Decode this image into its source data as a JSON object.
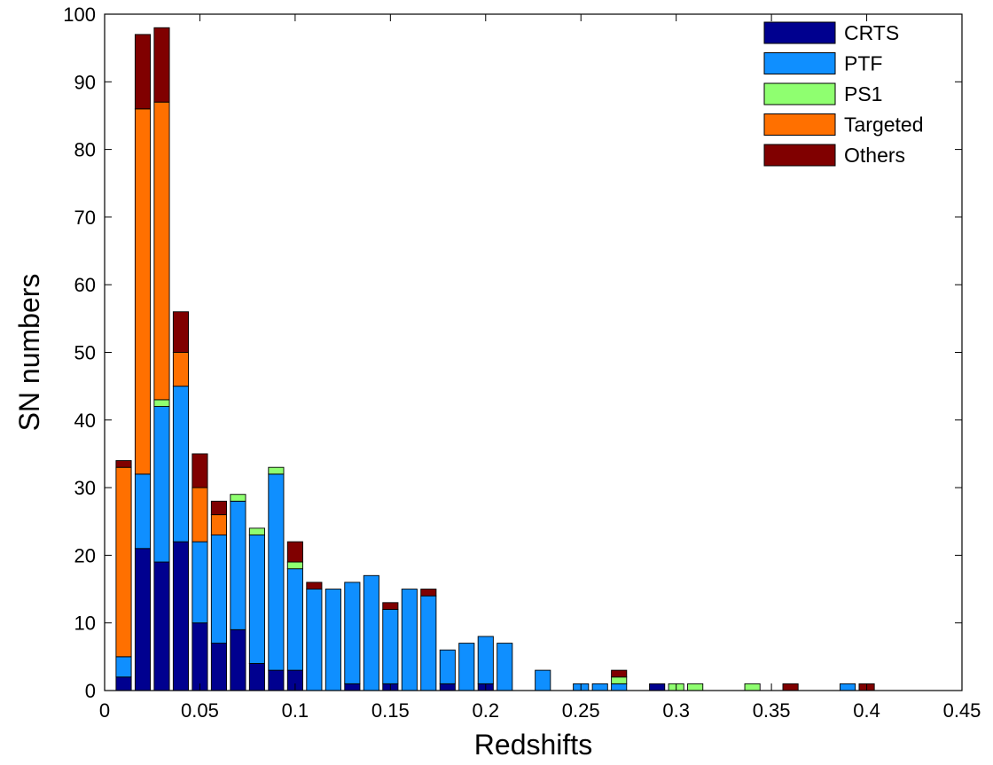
{
  "chart_data": {
    "type": "bar",
    "stacked": true,
    "xlabel": "Redshifts",
    "ylabel": "SN numbers",
    "xlim": [
      0,
      0.45
    ],
    "ylim": [
      0,
      100
    ],
    "xticks": [
      "0",
      "0.05",
      "0.1",
      "0.15",
      "0.2",
      "0.25",
      "0.3",
      "0.35",
      "0.4",
      "0.45"
    ],
    "yticks": [
      "0",
      "10",
      "20",
      "30",
      "40",
      "50",
      "60",
      "70",
      "80",
      "90",
      "100"
    ],
    "grid": false,
    "legend_position": "top-right",
    "bin_width": 0.01,
    "x": [
      0.01,
      0.02,
      0.03,
      0.04,
      0.05,
      0.06,
      0.07,
      0.08,
      0.09,
      0.1,
      0.11,
      0.12,
      0.13,
      0.14,
      0.15,
      0.16,
      0.17,
      0.18,
      0.19,
      0.2,
      0.21,
      0.22,
      0.23,
      0.24,
      0.25,
      0.26,
      0.27,
      0.28,
      0.29,
      0.3,
      0.31,
      0.32,
      0.33,
      0.34,
      0.35,
      0.36,
      0.37,
      0.38,
      0.39,
      0.4
    ],
    "series": [
      {
        "name": "CRTS",
        "color": "#00008f",
        "values": [
          2,
          21,
          19,
          22,
          10,
          7,
          9,
          4,
          3,
          3,
          0,
          0,
          1,
          0,
          1,
          0,
          0,
          1,
          0,
          1,
          0,
          0,
          0,
          0,
          0,
          0,
          0,
          0,
          1,
          0,
          0,
          0,
          0,
          0,
          0,
          0,
          0,
          0,
          0,
          0
        ]
      },
      {
        "name": "PTF",
        "color": "#0f8fff",
        "values": [
          3,
          11,
          23,
          23,
          12,
          16,
          19,
          19,
          29,
          15,
          15,
          15,
          15,
          17,
          11,
          15,
          14,
          5,
          7,
          7,
          7,
          0,
          3,
          0,
          1,
          1,
          1,
          0,
          0,
          0,
          0,
          0,
          0,
          0,
          0,
          0,
          0,
          0,
          1,
          0
        ]
      },
      {
        "name": "PS1",
        "color": "#8fff70",
        "values": [
          0,
          0,
          1,
          0,
          0,
          0,
          1,
          1,
          1,
          1,
          0,
          0,
          0,
          0,
          0,
          0,
          0,
          0,
          0,
          0,
          0,
          0,
          0,
          0,
          0,
          0,
          1,
          0,
          0,
          1,
          1,
          0,
          0,
          1,
          0,
          0,
          0,
          0,
          0,
          0
        ]
      },
      {
        "name": "Targeted",
        "color": "#ff7000",
        "values": [
          28,
          54,
          44,
          5,
          8,
          3,
          0,
          0,
          0,
          0,
          0,
          0,
          0,
          0,
          0,
          0,
          0,
          0,
          0,
          0,
          0,
          0,
          0,
          0,
          0,
          0,
          0,
          0,
          0,
          0,
          0,
          0,
          0,
          0,
          0,
          0,
          0,
          0,
          0,
          0
        ]
      },
      {
        "name": "Others",
        "color": "#800000",
        "values": [
          1,
          11,
          11,
          6,
          5,
          2,
          0,
          0,
          0,
          3,
          1,
          0,
          0,
          0,
          1,
          0,
          1,
          0,
          0,
          0,
          0,
          0,
          0,
          0,
          0,
          0,
          1,
          0,
          0,
          0,
          0,
          0,
          0,
          0,
          0,
          1,
          0,
          0,
          0,
          1
        ]
      }
    ]
  }
}
